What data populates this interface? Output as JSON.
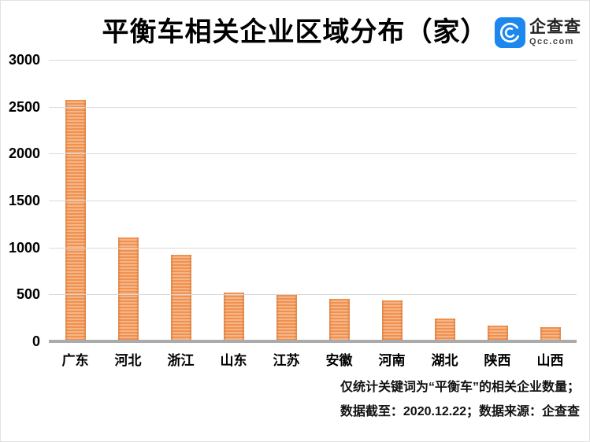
{
  "header": {
    "title": "平衡车相关企业区域分布（家）"
  },
  "logo": {
    "name": "企查查",
    "domain": "Qcc.com",
    "brand_color": "#1c88ee"
  },
  "footer": {
    "line1": "仅统计关键词为“平衡车”的相关企业数量；",
    "line2": "数据截至：2020.12.22；数据来源：企查查"
  },
  "chart_data": {
    "type": "bar",
    "title": "平衡车相关企业区域分布（家）",
    "categories": [
      "广东",
      "河北",
      "浙江",
      "山东",
      "江苏",
      "安徽",
      "河南",
      "湖北",
      "陕西",
      "山西"
    ],
    "values": [
      2570,
      1110,
      920,
      520,
      495,
      450,
      440,
      245,
      170,
      155
    ],
    "xlabel": "",
    "ylabel": "",
    "ylim": [
      0,
      3000
    ],
    "yticks": [
      0,
      500,
      1000,
      1500,
      2000,
      2500,
      3000
    ],
    "grid": true,
    "legend": "none",
    "bar_color": "#f0914f",
    "bar_stripe_color": "#f6b587",
    "gridline_color": "#d9d9d9",
    "axis_line_color": "#ababab",
    "annotations": [
      "仅统计关键词为“平衡车”的相关企业数量；",
      "数据截至：2020.12.22；数据来源：企查查"
    ]
  }
}
